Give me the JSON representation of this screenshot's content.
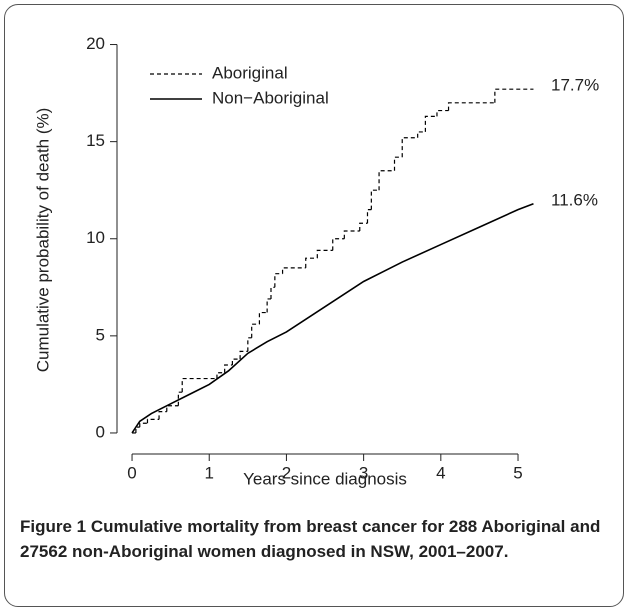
{
  "chart_data": {
    "type": "line",
    "x_label": "Years since diagnosis",
    "y_label": "Cumulative probability of death (%)",
    "caption": "Figure 1 Cumulative mortality from breast cancer for 288 Aboriginal and 27562 non-Aboriginal women diagnosed in NSW, 2001–2007.",
    "xlim": [
      -0.2,
      5.4
    ],
    "xticks": [
      0,
      1,
      2,
      3,
      4,
      5
    ],
    "ylim": [
      -0.8,
      20.8
    ],
    "yticks": [
      0,
      5,
      10,
      15,
      20
    ],
    "legend": "top-left",
    "series": [
      {
        "name": "Aboriginal",
        "color": "#000000",
        "line_style": "dashed",
        "drawstyle": "steps-post",
        "end_label": "17.7%",
        "x": [
          0,
          0.05,
          0.1,
          0.2,
          0.35,
          0.45,
          0.6,
          0.65,
          1.1,
          1.2,
          1.3,
          1.4,
          1.5,
          1.55,
          1.65,
          1.75,
          1.8,
          1.85,
          1.95,
          2.25,
          2.4,
          2.6,
          2.75,
          2.95,
          3.05,
          3.1,
          3.2,
          3.4,
          3.5,
          3.7,
          3.8,
          3.95,
          4.1,
          4.7,
          5.2
        ],
        "values": [
          0,
          0.3,
          0.5,
          0.7,
          1.1,
          1.4,
          2.1,
          2.8,
          3.1,
          3.5,
          3.8,
          4.2,
          4.9,
          5.6,
          6.2,
          6.9,
          7.5,
          8.2,
          8.5,
          9.0,
          9.4,
          10.0,
          10.4,
          10.8,
          11.5,
          12.5,
          13.5,
          14.2,
          15.2,
          15.5,
          16.3,
          16.6,
          17.0,
          17.7,
          17.7
        ]
      },
      {
        "name": "Non−Aboriginal",
        "color": "#000000",
        "line_style": "solid",
        "drawstyle": "smooth",
        "end_label": "11.6%",
        "x": [
          0,
          0.1,
          0.25,
          0.5,
          0.75,
          1,
          1.25,
          1.5,
          1.75,
          2,
          2.5,
          3,
          3.5,
          4,
          4.5,
          5,
          5.2
        ],
        "values": [
          0,
          0.6,
          1.0,
          1.5,
          2.0,
          2.5,
          3.2,
          4.1,
          4.7,
          5.2,
          6.5,
          7.8,
          8.8,
          9.7,
          10.6,
          11.5,
          11.8
        ]
      }
    ]
  }
}
